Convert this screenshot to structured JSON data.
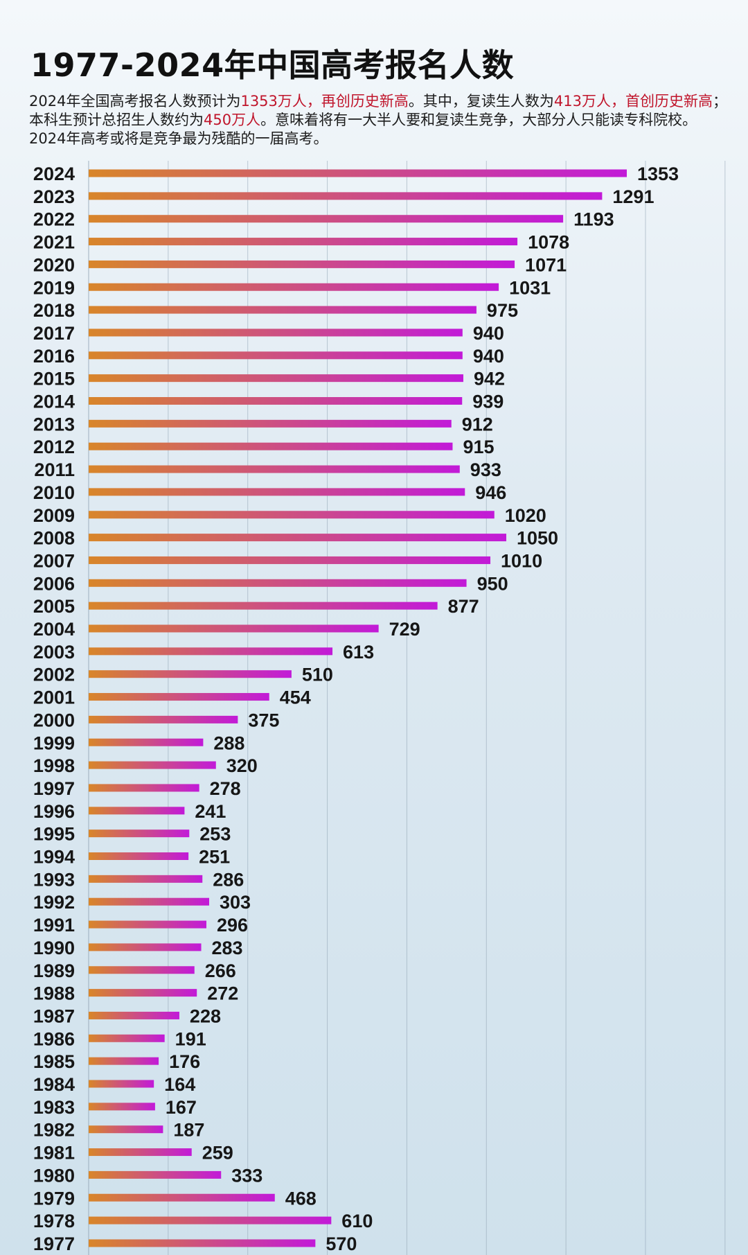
{
  "header": {
    "title": "1977-2024年中国高考报名人数"
  },
  "description": {
    "segments": [
      {
        "text": "2024年全国高考报名人数预计为",
        "highlight": false
      },
      {
        "text": "1353万人，再创历史新高",
        "highlight": true
      },
      {
        "text": "。其中，复读生人数为",
        "highlight": false
      },
      {
        "text": "413万人，首创历史新高",
        "highlight": true
      },
      {
        "text": "；本科生预计总招生人数约为",
        "highlight": false
      },
      {
        "text": "450万人",
        "highlight": true
      },
      {
        "text": "。意味着将有一大半人要和复读生竞争，大部分人只能读专科院校。2024年高考或将是竞争最为残酷的一届高考。",
        "highlight": false
      }
    ]
  },
  "colors": {
    "bar_start": "#d8862a",
    "bar_end": "#c21ad8",
    "highlight_text": "#c0152b",
    "grid": "#8fa2b3"
  },
  "chart_data": {
    "type": "bar",
    "orientation": "horizontal",
    "title": "1977-2024年中国高考报名人数",
    "xlabel": "",
    "ylabel": "",
    "xlim": [
      0,
      1600
    ],
    "grid": true,
    "categories": [
      "2024",
      "2023",
      "2022",
      "2021",
      "2020",
      "2019",
      "2018",
      "2017",
      "2016",
      "2015",
      "2014",
      "2013",
      "2012",
      "2011",
      "2010",
      "2009",
      "2008",
      "2007",
      "2006",
      "2005",
      "2004",
      "2003",
      "2002",
      "2001",
      "2000",
      "1999",
      "1998",
      "1997",
      "1996",
      "1995",
      "1994",
      "1993",
      "1992",
      "1991",
      "1990",
      "1989",
      "1988",
      "1987",
      "1986",
      "1985",
      "1984",
      "1983",
      "1982",
      "1981",
      "1980",
      "1979",
      "1978",
      "1977"
    ],
    "values": [
      1353,
      1291,
      1193,
      1078,
      1071,
      1031,
      975,
      940,
      940,
      942,
      939,
      912,
      915,
      933,
      946,
      1020,
      1050,
      1010,
      950,
      877,
      729,
      613,
      510,
      454,
      375,
      288,
      320,
      278,
      241,
      253,
      251,
      286,
      303,
      296,
      283,
      266,
      272,
      228,
      191,
      176,
      164,
      167,
      187,
      259,
      333,
      468,
      610,
      570
    ]
  }
}
